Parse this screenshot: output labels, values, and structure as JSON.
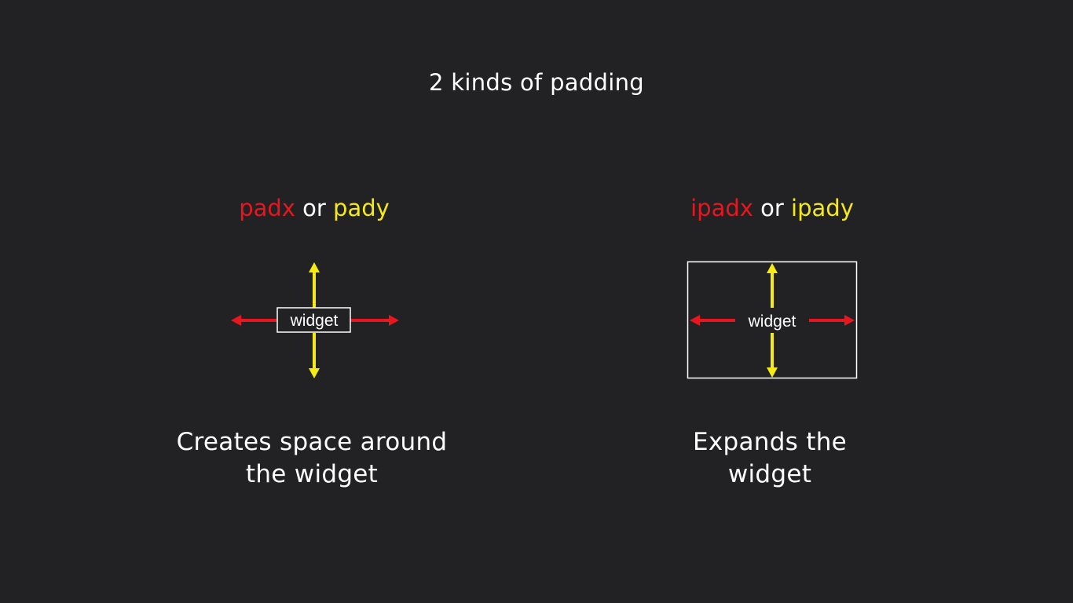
{
  "title": "2 kinds of padding",
  "left": {
    "heading": {
      "part1": "padx",
      "part2": " or ",
      "part3": "pady"
    },
    "widget_label": "widget",
    "description": {
      "line1": "Creates space around",
      "line2": "the widget"
    }
  },
  "right": {
    "heading": {
      "part1": "ipadx",
      "part2": " or ",
      "part3": "ipady"
    },
    "widget_label": "widget",
    "description": {
      "line1": "Expands the",
      "line2": "widget"
    }
  },
  "colors": {
    "background": "#222225",
    "x_color": "#e8161e",
    "y_color": "#f5ea14",
    "text": "#ffffff"
  }
}
